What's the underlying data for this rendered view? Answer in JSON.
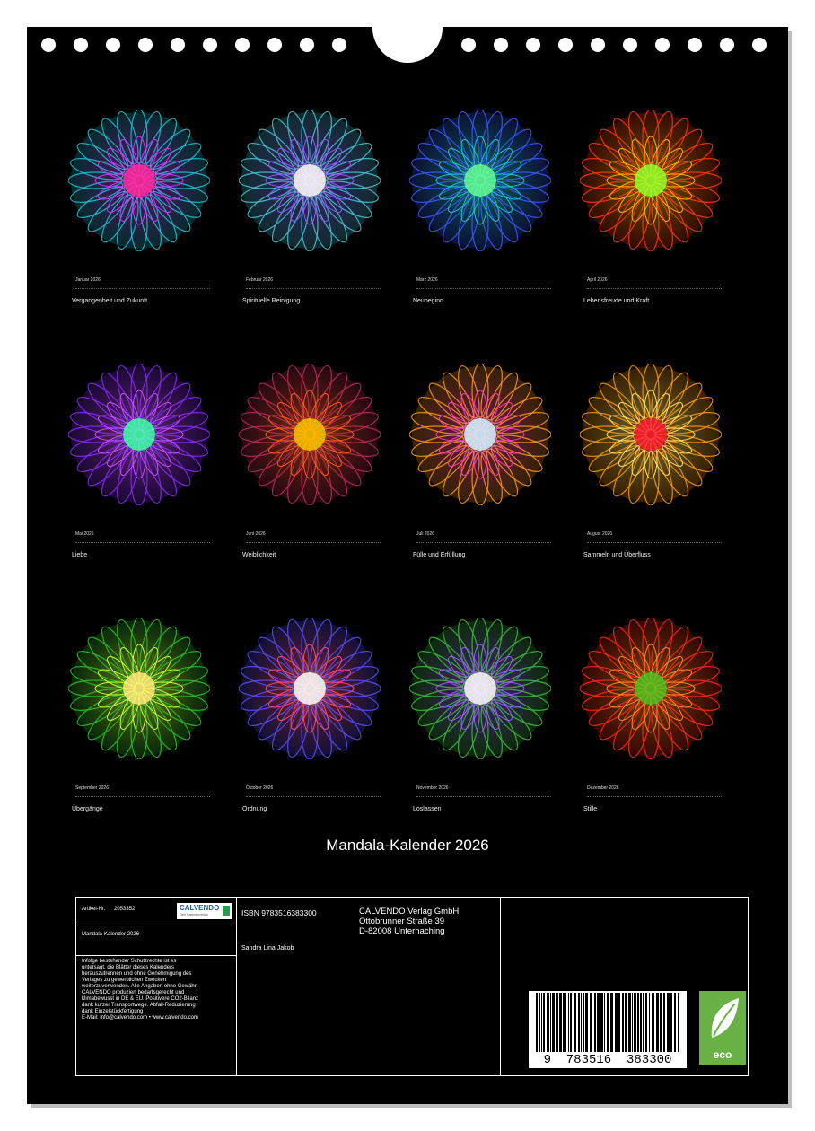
{
  "months": [
    {
      "month": "Januar 2026",
      "caption": "Vergangenheit und Zukunft",
      "c": [
        "#ff2fa0",
        "#c23cff",
        "#22c4d6"
      ]
    },
    {
      "month": "Februar 2026",
      "caption": "Spirituelle Reinigung",
      "c": [
        "#ffffff",
        "#8a5bff",
        "#4bc8d8"
      ]
    },
    {
      "month": "März 2026",
      "caption": "Neubeginn",
      "c": [
        "#66ff9a",
        "#19c8c8",
        "#3b5cff"
      ]
    },
    {
      "month": "April 2026",
      "caption": "Lebensfreude und Kraft",
      "c": [
        "#9cff2a",
        "#ffb000",
        "#ff3a10"
      ]
    },
    {
      "month": "Mai 2026",
      "caption": "Liebe",
      "c": [
        "#44ffb0",
        "#d04cff",
        "#8a2cff"
      ]
    },
    {
      "month": "Juni 2026",
      "caption": "Weiblichkeit",
      "c": [
        "#ffc400",
        "#ff5a1a",
        "#c02a5a"
      ]
    },
    {
      "month": "Juli 2026",
      "caption": "Fülle und Erfüllung",
      "c": [
        "#d8f6ff",
        "#ff3fa0",
        "#ff9a20"
      ]
    },
    {
      "month": "August 2026",
      "caption": "Sammeln und Überfluss",
      "c": [
        "#ff2030",
        "#ffe060",
        "#ff9a10"
      ]
    },
    {
      "month": "September 2026",
      "caption": "Übergänge",
      "c": [
        "#fff07a",
        "#c8ff30",
        "#2ec22e"
      ]
    },
    {
      "month": "Oktober 2026",
      "caption": "Ordnung",
      "c": [
        "#ffffff",
        "#ff4a70",
        "#5a50ff"
      ]
    },
    {
      "month": "November 2026",
      "caption": "Loslassen",
      "c": [
        "#ffffff",
        "#9a5aff",
        "#40c040"
      ]
    },
    {
      "month": "Dezember 2026",
      "caption": "Stille",
      "c": [
        "#5ac020",
        "#ff8a20",
        "#ff2a18"
      ]
    }
  ],
  "title": "Mandala-Kalender 2026",
  "info": {
    "artikel_label": "Artikel-Nr.",
    "artikel_nr": "2053352",
    "logo": "CALVENDO",
    "logo_sub": "Dein Kalenderverlag",
    "calendar_name": "Mandala-Kalender 2026",
    "notice": [
      "Infolge bestehender Schutzrechte ist es",
      "untersagt, die Blätter dieses Kalenders",
      "herauszutrennen und ohne Genehmigung des",
      "Verlages zu gewerblichen Zwecken",
      "weiterzuverwenden. Alle Angaben ohne Gewähr.",
      "CALVENDO produziert bedarfsgerecht und",
      "klimabewusst in DE & EU. Positivere CO2-Bilanz",
      "dank kurzer Transportwege. Abfall-Reduzierung",
      "dank Einzelstückfertigung",
      "E-Mail: info@calvendo.com • www.calvendo.com"
    ],
    "isbn": "ISBN 9783516383300",
    "author": "Sandra Lina Jakob",
    "publisher": [
      "CALVENDO Verlag GmbH",
      "Ottobrunner Straße 39",
      "D-82008 Unterhaching"
    ],
    "barcode_digits": "9  783516  383300",
    "eco": "eco"
  },
  "colors": {
    "page": "#000000",
    "text": "#ffffff",
    "eco": "#69b045"
  }
}
